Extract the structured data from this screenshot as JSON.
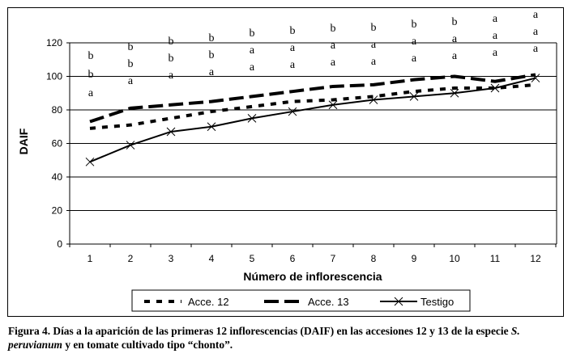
{
  "chart_data": {
    "type": "line",
    "xlabel": "Número de inflorescencia",
    "ylabel": "DAIF",
    "x": [
      1,
      2,
      3,
      4,
      5,
      6,
      7,
      8,
      9,
      10,
      11,
      12
    ],
    "xlim": [
      1,
      12
    ],
    "ylim": [
      0,
      120
    ],
    "yticks": [
      0,
      20,
      40,
      60,
      80,
      100,
      120
    ],
    "grid": true,
    "legend_position": "bottom",
    "series": [
      {
        "name": "Acce. 12",
        "style": "dotted-dash",
        "values": [
          69,
          71,
          75,
          79,
          82,
          85,
          86,
          88,
          91,
          93,
          93,
          95
        ]
      },
      {
        "name": "Acce. 13",
        "style": "long-dash",
        "values": [
          73,
          81,
          83,
          85,
          88,
          91,
          94,
          95,
          98,
          100,
          97,
          101
        ]
      },
      {
        "name": "Testigo",
        "style": "solid-x-markers",
        "values": [
          49,
          59,
          67,
          70,
          75,
          79,
          83,
          86,
          88,
          90,
          93,
          99
        ]
      }
    ],
    "significance_letters": [
      [
        "b",
        "b",
        "a"
      ],
      [
        "b",
        "b",
        "a"
      ],
      [
        "b",
        "b",
        "a"
      ],
      [
        "b",
        "b",
        "a"
      ],
      [
        "b",
        "a",
        "a"
      ],
      [
        "b",
        "a",
        "a"
      ],
      [
        "b",
        "a",
        "a"
      ],
      [
        "b",
        "a",
        "a"
      ],
      [
        "b",
        "a",
        "a"
      ],
      [
        "b",
        "a",
        "a"
      ],
      [
        "a",
        "a",
        "a"
      ],
      [
        "a",
        "a",
        "a"
      ]
    ]
  },
  "caption": {
    "part1": "Figura 4. Días a la aparición de las primeras 12  inflorescencias (DAIF) en las accesiones 12 y 13 de la especie ",
    "species": "S. peruvianum",
    "part2": " y en tomate cultivado tipo “chonto”."
  },
  "colors": {
    "line": "#000000",
    "grid": "#000000",
    "background": "#ffffff"
  }
}
